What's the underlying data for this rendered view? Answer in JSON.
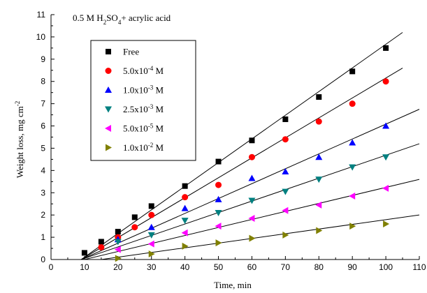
{
  "chart_data": {
    "type": "scatter",
    "title_parts": [
      "0.5 M H",
      "2",
      "SO",
      "4",
      "+  acrylic acid"
    ],
    "xlabel": "Time, min",
    "ylabel_parts": [
      "Weight loss, mg cm",
      "-2"
    ],
    "xlim": [
      0,
      110
    ],
    "ylim": [
      0,
      11
    ],
    "xticks": [
      0,
      10,
      20,
      30,
      40,
      50,
      60,
      70,
      80,
      90,
      100,
      110
    ],
    "yticks": [
      0,
      1,
      2,
      3,
      4,
      5,
      6,
      7,
      8,
      9,
      10,
      11
    ],
    "legend_position": "top-left",
    "grid": false,
    "series": [
      {
        "label_parts": [
          "Free"
        ],
        "marker": "square",
        "color": "#000000",
        "x": [
          10,
          15,
          20,
          25,
          30,
          40,
          50,
          60,
          70,
          80,
          90,
          100
        ],
        "y": [
          0.3,
          0.8,
          1.25,
          1.9,
          2.4,
          3.3,
          4.4,
          5.35,
          6.3,
          7.3,
          8.45,
          9.5
        ],
        "fit": [
          [
            9,
            0.0
          ],
          [
            105,
            10.2
          ]
        ]
      },
      {
        "label_parts": [
          "5.0x10",
          "-4",
          " M"
        ],
        "marker": "circle",
        "color": "#ff0000",
        "x": [
          15,
          20,
          25,
          30,
          40,
          50,
          60,
          70,
          80,
          90,
          100
        ],
        "y": [
          0.55,
          1.0,
          1.45,
          2.0,
          2.8,
          3.35,
          4.6,
          5.4,
          6.2,
          7.0,
          8.0
        ],
        "fit": [
          [
            9,
            0.0
          ],
          [
            105,
            8.6
          ]
        ]
      },
      {
        "label_parts": [
          "1.0x10",
          "-3",
          " M"
        ],
        "marker": "triangle-up",
        "color": "#0000ff",
        "x": [
          20,
          30,
          40,
          50,
          60,
          70,
          80,
          90,
          100
        ],
        "y": [
          0.9,
          1.45,
          2.3,
          2.7,
          3.65,
          3.95,
          4.6,
          5.25,
          6.0
        ],
        "fit": [
          [
            9,
            0.0
          ],
          [
            110,
            6.75
          ]
        ]
      },
      {
        "label_parts": [
          "2.5x10",
          "-3",
          " M"
        ],
        "marker": "triangle-down",
        "color": "#008080",
        "x": [
          20,
          30,
          40,
          50,
          60,
          70,
          80,
          90,
          100
        ],
        "y": [
          0.8,
          1.1,
          1.75,
          2.1,
          2.65,
          3.05,
          3.6,
          4.15,
          4.6
        ],
        "fit": [
          [
            9,
            0.0
          ],
          [
            110,
            5.2
          ]
        ]
      },
      {
        "label_parts": [
          "5.0x10",
          "-5",
          " M"
        ],
        "marker": "triangle-left",
        "color": "#ff00ff",
        "x": [
          20,
          30,
          40,
          50,
          60,
          70,
          80,
          90,
          100
        ],
        "y": [
          0.45,
          0.7,
          1.2,
          1.5,
          1.85,
          2.2,
          2.45,
          2.85,
          3.2
        ],
        "fit": [
          [
            10,
            0.0
          ],
          [
            110,
            3.6
          ]
        ]
      },
      {
        "label_parts": [
          "1.0x10",
          "-2",
          " M"
        ],
        "marker": "triangle-right",
        "color": "#808000",
        "x": [
          20,
          30,
          40,
          50,
          60,
          70,
          80,
          90,
          100
        ],
        "y": [
          0.05,
          0.25,
          0.6,
          0.75,
          0.95,
          1.1,
          1.3,
          1.5,
          1.6
        ],
        "fit": [
          [
            15,
            0.0
          ],
          [
            110,
            2.0
          ]
        ]
      }
    ]
  }
}
